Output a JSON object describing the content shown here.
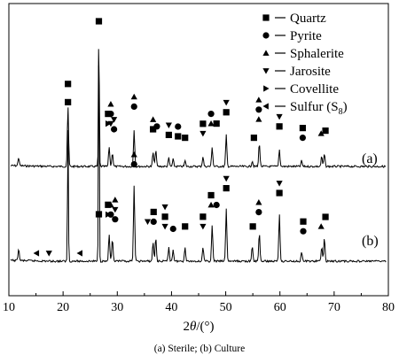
{
  "caption": "(a) Sterile; (b) Culture",
  "chart_data": {
    "type": "line",
    "title": "",
    "xlabel_parts": [
      "2",
      "θ",
      "/(°)"
    ],
    "ylabel": "",
    "xlim": [
      10,
      80
    ],
    "x_ticks": [
      10,
      20,
      30,
      40,
      50,
      60,
      70,
      80
    ],
    "grid": false,
    "legend_placement": "top-right",
    "legend": [
      {
        "marker": "square",
        "label": "Quartz"
      },
      {
        "marker": "circle",
        "label": "Pyrite"
      },
      {
        "marker": "triangle-up",
        "label": "Sphalerite"
      },
      {
        "marker": "triangle-down",
        "label": "Jarosite"
      },
      {
        "marker": "triangle-right",
        "label": "Covellite"
      },
      {
        "marker": "triangle-left",
        "label": "Sulfur (S",
        "subscript": "8",
        "suffix": ")"
      }
    ],
    "series": [
      {
        "name": "(a)",
        "peaks": [
          {
            "x": 11.8,
            "h": 0.06
          },
          {
            "x": 20.9,
            "h": 0.42
          },
          {
            "x": 26.6,
            "h": 1.0
          },
          {
            "x": 28.5,
            "h": 0.14
          },
          {
            "x": 29.1,
            "h": 0.1
          },
          {
            "x": 33.1,
            "h": 0.26
          },
          {
            "x": 36.6,
            "h": 0.1
          },
          {
            "x": 37.1,
            "h": 0.12
          },
          {
            "x": 39.5,
            "h": 0.06
          },
          {
            "x": 40.3,
            "h": 0.05
          },
          {
            "x": 42.5,
            "h": 0.04
          },
          {
            "x": 45.8,
            "h": 0.07
          },
          {
            "x": 47.5,
            "h": 0.14
          },
          {
            "x": 50.1,
            "h": 0.22
          },
          {
            "x": 54.9,
            "h": 0.04
          },
          {
            "x": 56.2,
            "h": 0.17
          },
          {
            "x": 59.9,
            "h": 0.12
          },
          {
            "x": 64.0,
            "h": 0.04
          },
          {
            "x": 67.7,
            "h": 0.07
          },
          {
            "x": 68.2,
            "h": 0.09
          }
        ],
        "markers": [
          {
            "x": 20.9,
            "col": [
              {
                "m": "square"
              }
            ]
          },
          {
            "x": 26.6,
            "col": [
              {
                "m": "square"
              }
            ]
          },
          {
            "x": 28.3,
            "col": [
              {
                "m": "triangle-right"
              },
              {
                "m": "square"
              }
            ]
          },
          {
            "x": 28.8,
            "col": [
              {
                "m": "triangle-down"
              },
              {
                "m": "circle"
              },
              {
                "m": "triangle-up"
              }
            ]
          },
          {
            "x": 29.4,
            "col": [
              {
                "m": "circle"
              },
              {
                "m": "triangle-down"
              }
            ]
          },
          {
            "x": 33.1,
            "col": [
              {
                "m": "circle"
              },
              {
                "m": "triangle-up"
              }
            ]
          },
          {
            "x": 36.6,
            "col": [
              {
                "m": "square"
              },
              {
                "m": "triangle-up"
              }
            ]
          },
          {
            "x": 37.3,
            "col": [
              {
                "m": "circle"
              }
            ]
          },
          {
            "x": 39.5,
            "col": [
              {
                "m": "square"
              },
              {
                "m": "triangle-down"
              }
            ]
          },
          {
            "x": 41.2,
            "col": [
              {
                "m": "square"
              },
              {
                "m": "circle"
              }
            ]
          },
          {
            "x": 42.5,
            "col": [
              {
                "m": "square"
              }
            ]
          },
          {
            "x": 45.8,
            "col": [
              {
                "m": "triangle-down"
              },
              {
                "m": "square"
              }
            ]
          },
          {
            "x": 47.3,
            "col": [
              {
                "m": "triangle-up"
              },
              {
                "m": "circle"
              }
            ]
          },
          {
            "x": 48.3,
            "col": [
              {
                "m": "square"
              }
            ]
          },
          {
            "x": 50.1,
            "col": [
              {
                "m": "square"
              },
              {
                "m": "triangle-down"
              }
            ]
          },
          {
            "x": 55.2,
            "col": [
              {
                "m": "square"
              }
            ]
          },
          {
            "x": 56.1,
            "col": [
              {
                "m": "triangle-up"
              },
              {
                "m": "circle"
              },
              {
                "m": "triangle-up"
              }
            ]
          },
          {
            "x": 59.9,
            "col": [
              {
                "m": "square"
              },
              {
                "m": "triangle-down"
              }
            ]
          },
          {
            "x": 64.2,
            "col": [
              {
                "m": "circle"
              },
              {
                "m": "square"
              }
            ]
          },
          {
            "x": 67.6,
            "col": [
              {
                "m": "triangle-up"
              }
            ]
          },
          {
            "x": 68.4,
            "col": [
              {
                "m": "square"
              }
            ]
          }
        ]
      },
      {
        "name": "(b)",
        "peaks": [
          {
            "x": 11.8,
            "h": 0.05
          },
          {
            "x": 20.9,
            "h": 0.58
          },
          {
            "x": 26.6,
            "h": 1.0
          },
          {
            "x": 28.5,
            "h": 0.11
          },
          {
            "x": 29.1,
            "h": 0.09
          },
          {
            "x": 33.1,
            "h": 0.32
          },
          {
            "x": 36.6,
            "h": 0.08
          },
          {
            "x": 37.1,
            "h": 0.1
          },
          {
            "x": 39.5,
            "h": 0.06
          },
          {
            "x": 40.3,
            "h": 0.05
          },
          {
            "x": 42.5,
            "h": 0.06
          },
          {
            "x": 45.8,
            "h": 0.06
          },
          {
            "x": 47.5,
            "h": 0.15
          },
          {
            "x": 50.1,
            "h": 0.22
          },
          {
            "x": 54.9,
            "h": 0.06
          },
          {
            "x": 56.2,
            "h": 0.12
          },
          {
            "x": 59.9,
            "h": 0.2
          },
          {
            "x": 64.0,
            "h": 0.04
          },
          {
            "x": 67.7,
            "h": 0.06
          },
          {
            "x": 68.2,
            "h": 0.1
          }
        ],
        "markers": [
          {
            "x": 15.1,
            "col": [
              {
                "m": "triangle-left"
              }
            ]
          },
          {
            "x": 17.4,
            "col": [
              {
                "m": "triangle-down"
              }
            ]
          },
          {
            "x": 23.1,
            "col": [
              {
                "m": "triangle-left"
              }
            ]
          },
          {
            "x": 20.9,
            "col": [
              {
                "m": "square"
              }
            ]
          },
          {
            "x": 26.6,
            "col": [
              {
                "m": "square"
              }
            ]
          },
          {
            "x": 28.3,
            "col": [
              {
                "m": "triangle-right"
              },
              {
                "m": "square"
              }
            ]
          },
          {
            "x": 28.8,
            "col": [
              {
                "m": "circle"
              },
              {
                "m": "triangle-up"
              }
            ]
          },
          {
            "x": 29.6,
            "col": [
              {
                "m": "circle"
              },
              {
                "m": "triangle-down"
              },
              {
                "m": "triangle-up"
              }
            ]
          },
          {
            "x": 33.1,
            "col": [
              {
                "m": "circle"
              },
              {
                "m": "triangle-up"
              }
            ]
          },
          {
            "x": 35.6,
            "col": [
              {
                "m": "triangle-down"
              }
            ]
          },
          {
            "x": 36.7,
            "col": [
              {
                "m": "circle"
              },
              {
                "m": "square"
              }
            ]
          },
          {
            "x": 38.8,
            "col": [
              {
                "m": "triangle-down"
              },
              {
                "m": "square"
              },
              {
                "m": "triangle-down"
              }
            ]
          },
          {
            "x": 40.3,
            "col": [
              {
                "m": "circle"
              }
            ]
          },
          {
            "x": 42.5,
            "col": [
              {
                "m": "square"
              }
            ]
          },
          {
            "x": 45.8,
            "col": [
              {
                "m": "triangle-down"
              },
              {
                "m": "square"
              }
            ]
          },
          {
            "x": 47.3,
            "col": [
              {
                "m": "triangle-up"
              },
              {
                "m": "square"
              }
            ]
          },
          {
            "x": 48.3,
            "col": [
              {
                "m": "circle"
              }
            ]
          },
          {
            "x": 50.1,
            "col": [
              {
                "m": "square"
              },
              {
                "m": "triangle-down"
              }
            ]
          },
          {
            "x": 55.0,
            "col": [
              {
                "m": "square"
              }
            ]
          },
          {
            "x": 56.1,
            "col": [
              {
                "m": "circle"
              },
              {
                "m": "triangle-up"
              }
            ]
          },
          {
            "x": 59.9,
            "col": [
              {
                "m": "square"
              },
              {
                "m": "triangle-down"
              }
            ]
          },
          {
            "x": 64.3,
            "col": [
              {
                "m": "circle"
              },
              {
                "m": "square"
              }
            ]
          },
          {
            "x": 67.6,
            "col": [
              {
                "m": "triangle-up"
              }
            ]
          },
          {
            "x": 68.4,
            "col": [
              {
                "m": "square"
              }
            ]
          }
        ]
      }
    ]
  }
}
